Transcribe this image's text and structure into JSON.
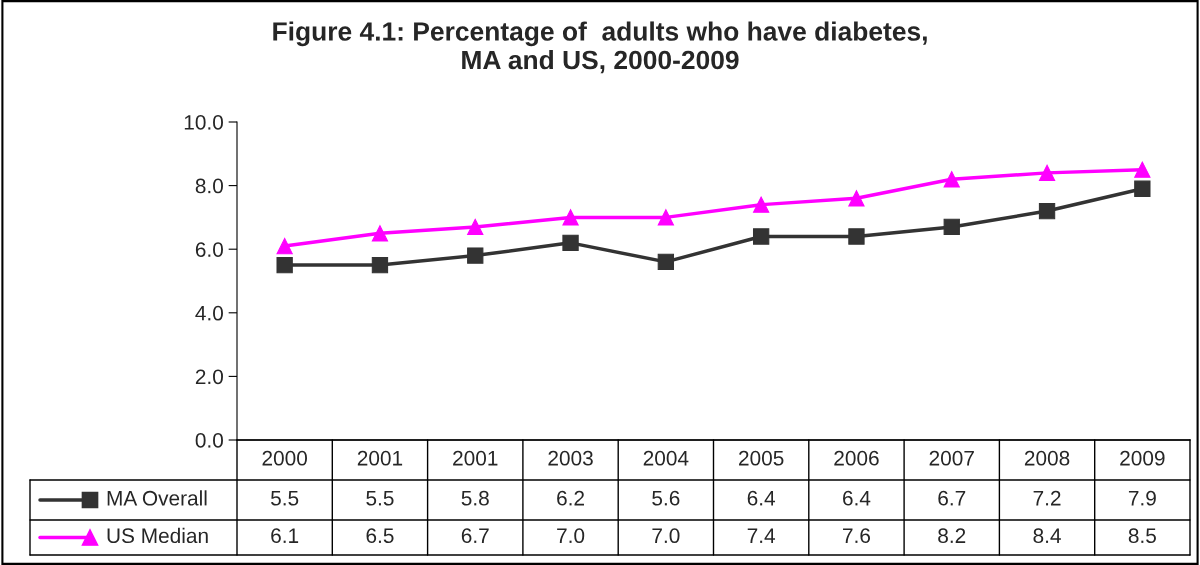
{
  "chart_data": {
    "type": "line",
    "title": "Figure 4.1: Percentage of  adults who have diabetes,\nMA and US, 2000-2009",
    "categories": [
      "2000",
      "2001",
      "2001",
      "2003",
      "2004",
      "2005",
      "2006",
      "2007",
      "2008",
      "2009"
    ],
    "series": [
      {
        "name": "MA Overall",
        "color": "#333333",
        "marker": "square",
        "values": [
          5.5,
          5.5,
          5.8,
          6.2,
          5.6,
          6.4,
          6.4,
          6.7,
          7.2,
          7.9
        ],
        "value_labels": [
          "5.5",
          "5.5",
          "5.8",
          "6.2",
          "5.6",
          "6.4",
          "6.4",
          "6.7",
          "7.2",
          "7.9"
        ]
      },
      {
        "name": "US Median",
        "color": "#ff00ff",
        "marker": "triangle",
        "values": [
          6.1,
          6.5,
          6.7,
          7.0,
          7.0,
          7.4,
          7.6,
          8.2,
          8.4,
          8.5
        ],
        "value_labels": [
          "6.1",
          "6.5",
          "6.7",
          "7.0",
          "7.0",
          "7.4",
          "7.6",
          "8.2",
          "8.4",
          "8.5"
        ]
      }
    ],
    "ylim": [
      0,
      10
    ],
    "yticks": [
      {
        "value": 0,
        "label": "0.0"
      },
      {
        "value": 2,
        "label": "2.0"
      },
      {
        "value": 4,
        "label": "4.0"
      },
      {
        "value": 6,
        "label": "6.0"
      },
      {
        "value": 8,
        "label": "8.0"
      },
      {
        "value": 10,
        "label": "10.0"
      }
    ],
    "grid": false,
    "legend": "bottom left",
    "line_style": "solid"
  }
}
